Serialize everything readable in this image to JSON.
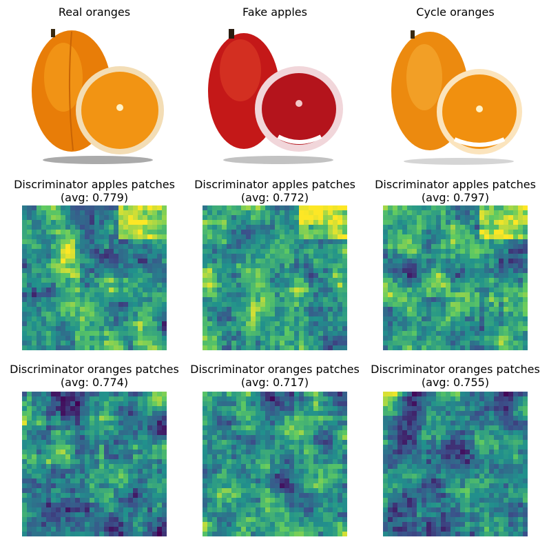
{
  "row1": {
    "titles": [
      "Real oranges",
      "Fake apples",
      "Cycle oranges"
    ]
  },
  "row2": {
    "title_line1": "Discriminator apples patches",
    "avgs": [
      "(avg: 0.779)",
      "(avg: 0.772)",
      "(avg: 0.797)"
    ]
  },
  "row3": {
    "title_line1": "Discriminator oranges patches",
    "avgs": [
      "(avg: 0.774)",
      "(avg: 0.717)",
      "(avg: 0.755)"
    ]
  },
  "images": [
    {
      "name": "real-oranges-photo",
      "peel": "#f08a0c",
      "flesh": "#f59a10",
      "rind": "#f6d8a6"
    },
    {
      "name": "fake-apples-photo",
      "peel": "#c81a18",
      "flesh": "#b8141e",
      "rind": "#f1d6da"
    },
    {
      "name": "cycle-oranges-photo",
      "peel": "#f08a0c",
      "flesh": "#f39412",
      "rind": "#fbe4bd"
    }
  ],
  "colormap": "viridis"
}
